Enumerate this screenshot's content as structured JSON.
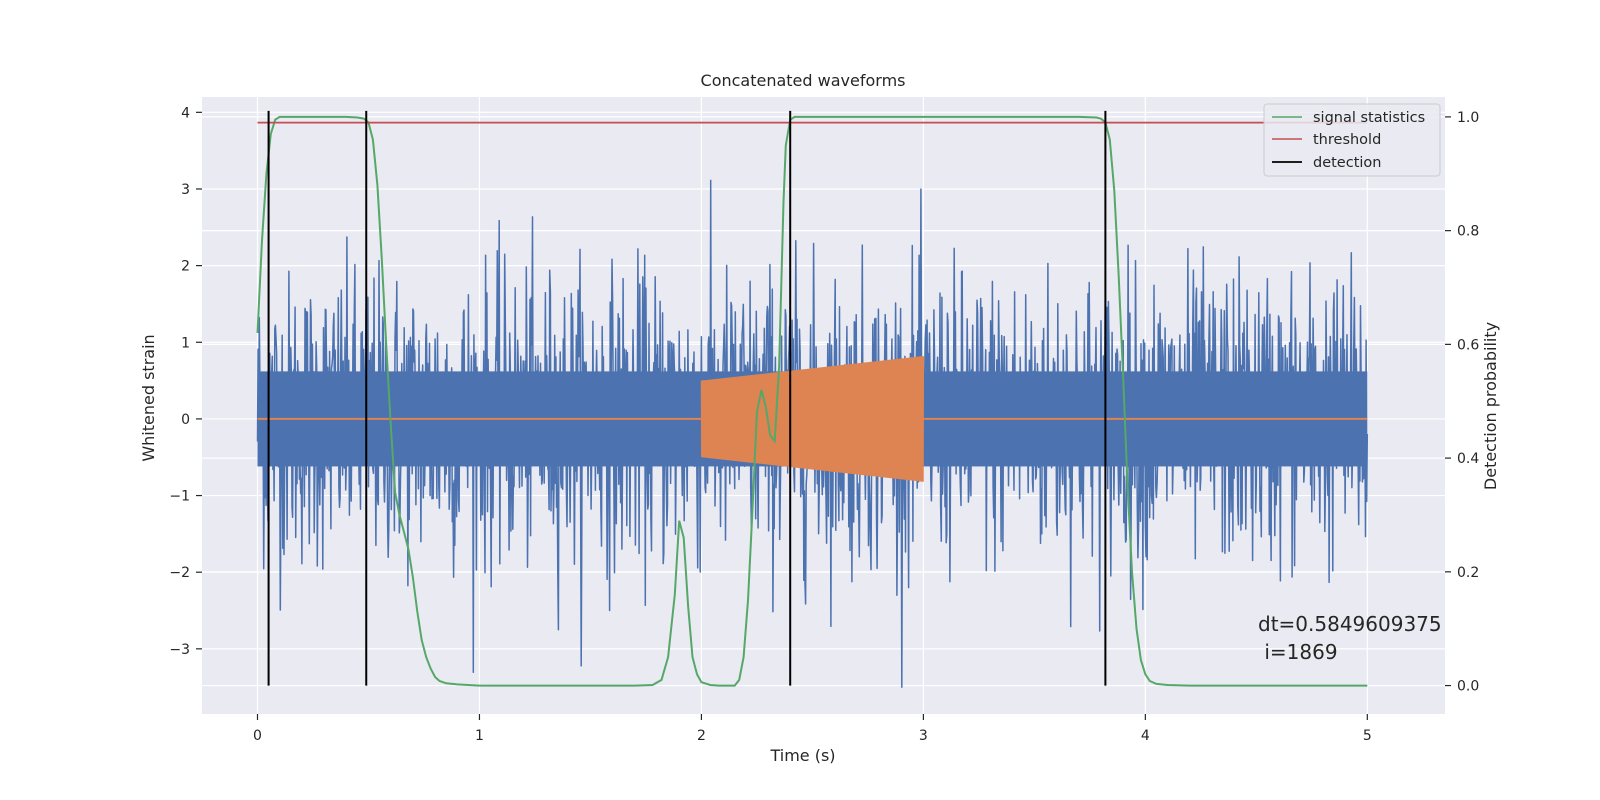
{
  "chart_data": {
    "type": "line",
    "title": "Concatenated waveforms",
    "xlabel": "Time (s)",
    "ylabel": "Whitened strain",
    "y2label": "Detection probability",
    "xlim": [
      -0.25,
      5.35
    ],
    "ylim": [
      -3.85,
      4.2
    ],
    "y2lim": [
      -0.05,
      1.035
    ],
    "x_ticks": [
      0,
      1,
      2,
      3,
      4,
      5
    ],
    "x_tick_labels": [
      "0",
      "1",
      "2",
      "3",
      "4",
      "5"
    ],
    "y_ticks": [
      -3,
      -2,
      -1,
      0,
      1,
      2,
      3,
      4
    ],
    "y_tick_labels": [
      "−3",
      "−2",
      "−1",
      "0",
      "1",
      "2",
      "3",
      "4"
    ],
    "y2_ticks": [
      0.0,
      0.2,
      0.4,
      0.6,
      0.8,
      1.0
    ],
    "y2_tick_labels": [
      "0.0",
      "0.2",
      "0.4",
      "0.6",
      "0.8",
      "1.0"
    ],
    "grid": true,
    "legend_position": "top-right",
    "colors": {
      "background": "#eaeaf2",
      "grid": "#ffffff",
      "noise": "#4c72b0",
      "injection": "#dd8452",
      "signal_statistics": "#55a868",
      "threshold": "#c44e52",
      "detection": "#000000"
    },
    "series": [
      {
        "name": "signal statistics",
        "axis": "right",
        "x": [
          0.0,
          0.02,
          0.04,
          0.06,
          0.08,
          0.1,
          0.15,
          0.2,
          0.3,
          0.4,
          0.45,
          0.48,
          0.5,
          0.52,
          0.54,
          0.56,
          0.58,
          0.6,
          0.62,
          0.64,
          0.66,
          0.68,
          0.7,
          0.72,
          0.74,
          0.76,
          0.78,
          0.8,
          0.82,
          0.85,
          0.9,
          1.0,
          1.2,
          1.5,
          1.7,
          1.78,
          1.82,
          1.85,
          1.88,
          1.9,
          1.92,
          1.94,
          1.96,
          1.98,
          2.0,
          2.04,
          2.08,
          2.12,
          2.15,
          2.17,
          2.19,
          2.21,
          2.23,
          2.25,
          2.27,
          2.29,
          2.31,
          2.33,
          2.35,
          2.37,
          2.38,
          2.4,
          2.42,
          2.45,
          2.5,
          2.6,
          3.0,
          3.5,
          3.7,
          3.78,
          3.8,
          3.82,
          3.84,
          3.86,
          3.88,
          3.9,
          3.92,
          3.94,
          3.96,
          3.98,
          4.0,
          4.02,
          4.05,
          4.1,
          4.2,
          4.5,
          5.0
        ],
        "y": [
          0.62,
          0.78,
          0.9,
          0.97,
          0.995,
          1.0,
          1.0,
          1.0,
          1.0,
          1.0,
          0.999,
          0.997,
          0.99,
          0.96,
          0.88,
          0.75,
          0.6,
          0.46,
          0.34,
          0.3,
          0.27,
          0.24,
          0.19,
          0.13,
          0.08,
          0.05,
          0.03,
          0.015,
          0.008,
          0.004,
          0.002,
          0.0,
          0.0,
          0.0,
          0.0,
          0.001,
          0.01,
          0.05,
          0.16,
          0.29,
          0.26,
          0.14,
          0.05,
          0.02,
          0.006,
          0.001,
          0.0,
          0.0,
          0.0,
          0.01,
          0.05,
          0.15,
          0.31,
          0.48,
          0.52,
          0.49,
          0.44,
          0.43,
          0.56,
          0.85,
          0.95,
          0.995,
          1.0,
          1.0,
          1.0,
          1.0,
          1.0,
          1.0,
          1.0,
          0.999,
          0.997,
          0.99,
          0.96,
          0.87,
          0.72,
          0.54,
          0.35,
          0.2,
          0.1,
          0.045,
          0.02,
          0.008,
          0.003,
          0.001,
          0.0,
          0.0,
          0.0
        ]
      },
      {
        "name": "threshold",
        "axis": "right",
        "x": [
          0.0,
          5.0
        ],
        "y": [
          0.99,
          0.99
        ]
      },
      {
        "name": "detection",
        "axis": "right",
        "type": "vlines",
        "x": [
          0.05,
          0.49,
          2.4,
          3.82
        ],
        "ymin": 0.0,
        "ymax": 1.0
      },
      {
        "axis": "left",
        "type": "noise",
        "x_range": [
          0.0,
          5.0
        ],
        "envelope": 2.3,
        "peak": 3.5
      },
      {
        "axis": "left",
        "type": "chirp",
        "x_range": [
          2.0,
          3.0
        ],
        "amplitude_start": 0.5,
        "amplitude_end": 0.82,
        "baseline": 0.0
      }
    ],
    "annotation": {
      "line1": "dt=0.5849609375",
      "line2": " i=1869",
      "x": 4.52,
      "y": -2.98
    }
  }
}
